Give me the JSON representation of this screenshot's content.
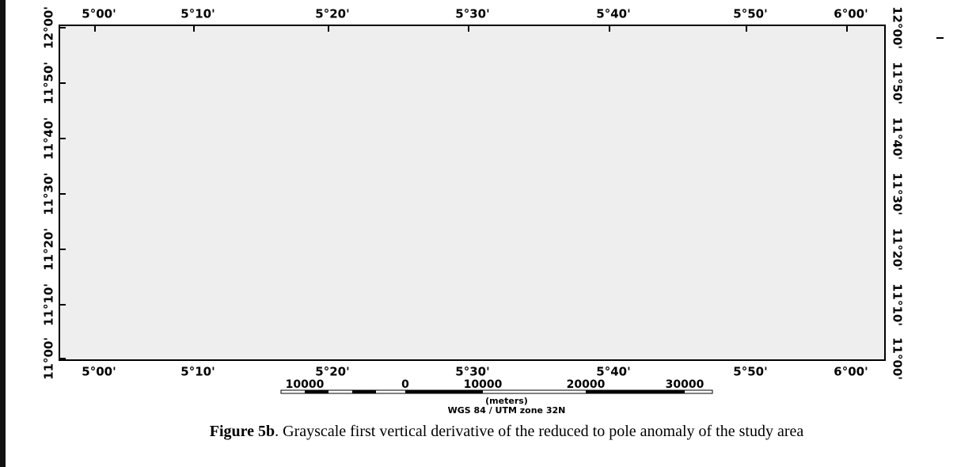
{
  "map": {
    "top_labels": [
      "5°00'",
      "5°10'",
      "5°20'",
      "5°30'",
      "5°40'",
      "5°50'",
      "6°00'"
    ],
    "bottom_labels": [
      "5°00'",
      "5°10'",
      "5°20'",
      "5°30'",
      "5°40'",
      "5°50'",
      "6°00'"
    ],
    "left_labels": [
      "12°00'",
      "11°50'",
      "11°40'",
      "11°30'",
      "11°20'",
      "11°10'",
      "11°00'"
    ],
    "right_labels": [
      "12°00'",
      "11°50'",
      "11°40'",
      "11°30'",
      "11°20'",
      "11°10'",
      "11°00'"
    ]
  },
  "scale_bar": {
    "labels": [
      "10000",
      "0",
      "10000",
      "20000",
      "30000"
    ],
    "unit": "(meters)",
    "projection": "WGS 84 / UTM zone 32N"
  },
  "caption": {
    "label": "Figure 5b",
    "text": ". Grayscale first vertical derivative of the reduced to pole anomaly of the study area"
  }
}
